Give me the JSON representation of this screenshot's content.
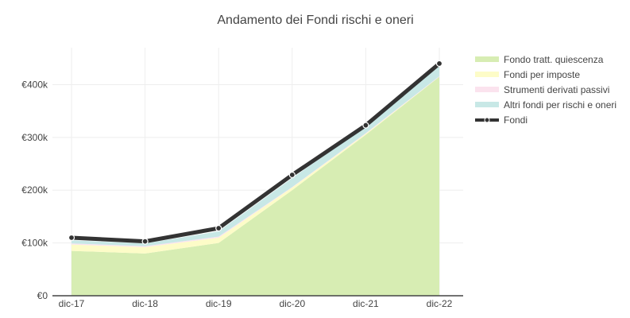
{
  "chart_data": {
    "type": "area",
    "title": "Andamento dei Fondi rischi e oneri",
    "categories": [
      "dic-17",
      "dic-18",
      "dic-19",
      "dic-20",
      "dic-21",
      "dic-22"
    ],
    "y_ticks": [
      "€0",
      "€100k",
      "€200k",
      "€300k",
      "€400k"
    ],
    "ylim": [
      0,
      470000
    ],
    "grid": true,
    "legend_position": "right",
    "stacked_series": [
      {
        "name": "Fondo tratt. quiescenza",
        "color": "#d7edb3",
        "values": [
          85000,
          80000,
          100000,
          200000,
          305000,
          415000
        ]
      },
      {
        "name": "Fondi per imposte",
        "color": "#fdfcc8",
        "values": [
          12000,
          12000,
          10000,
          5000,
          2000,
          0
        ]
      },
      {
        "name": "Strumenti derivati passivi",
        "color": "#fbe3ee",
        "values": [
          2000,
          2000,
          2000,
          1000,
          1000,
          1000
        ]
      },
      {
        "name": "Altri fondi per rischi e oneri",
        "color": "#c8e8e6",
        "values": [
          6000,
          5000,
          10000,
          17000,
          13000,
          19000
        ]
      }
    ],
    "line_series": {
      "name": "Fondi",
      "color": "#333333",
      "values": [
        110000,
        103000,
        128000,
        229000,
        323000,
        440000
      ]
    }
  }
}
